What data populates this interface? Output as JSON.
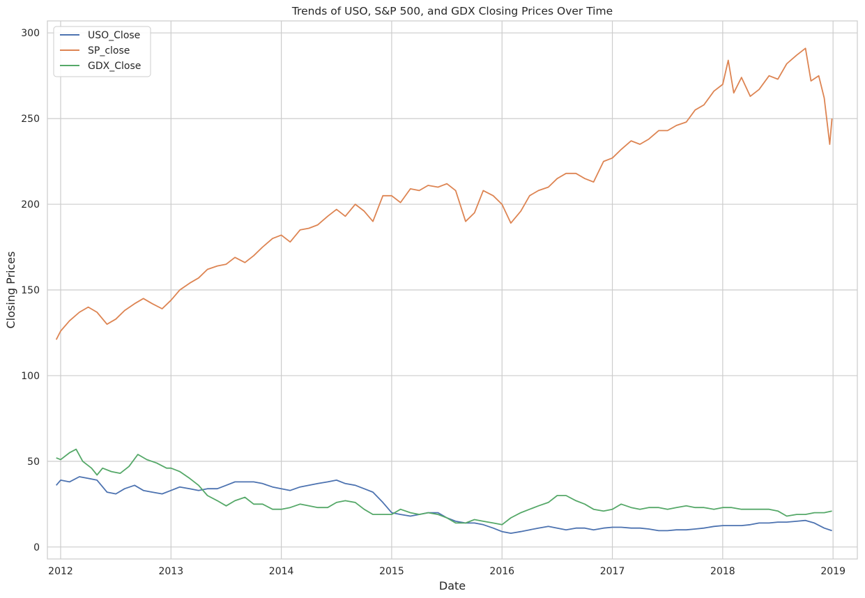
{
  "chart_data": {
    "type": "line",
    "title": "Trends of USO, S&P 500, and GDX Closing Prices Over Time",
    "xlabel": "Date",
    "ylabel": "Closing Prices",
    "xlim": [
      2011.88,
      2019.22
    ],
    "ylim": [
      -7,
      307
    ],
    "x_ticks": [
      2012,
      2013,
      2014,
      2015,
      2016,
      2017,
      2018,
      2019
    ],
    "x_tick_labels": [
      "2012",
      "2013",
      "2014",
      "2015",
      "2016",
      "2017",
      "2018",
      "2019"
    ],
    "y_ticks": [
      0,
      50,
      100,
      150,
      200,
      250,
      300
    ],
    "y_tick_labels": [
      "0",
      "50",
      "100",
      "150",
      "200",
      "250",
      "300"
    ],
    "grid": true,
    "legend_position": "top-left",
    "series": [
      {
        "name": "USO_Close",
        "color": "#4c72b0",
        "points": [
          [
            2011.96,
            36
          ],
          [
            2012.0,
            39
          ],
          [
            2012.08,
            38
          ],
          [
            2012.17,
            41
          ],
          [
            2012.25,
            40
          ],
          [
            2012.33,
            39
          ],
          [
            2012.42,
            32
          ],
          [
            2012.5,
            31
          ],
          [
            2012.58,
            34
          ],
          [
            2012.67,
            36
          ],
          [
            2012.75,
            33
          ],
          [
            2012.83,
            32
          ],
          [
            2012.92,
            31
          ],
          [
            2013.0,
            33
          ],
          [
            2013.08,
            35
          ],
          [
            2013.17,
            34
          ],
          [
            2013.25,
            33
          ],
          [
            2013.33,
            34
          ],
          [
            2013.42,
            34
          ],
          [
            2013.5,
            36
          ],
          [
            2013.58,
            38
          ],
          [
            2013.67,
            38
          ],
          [
            2013.75,
            38
          ],
          [
            2013.83,
            37
          ],
          [
            2013.92,
            35
          ],
          [
            2014.0,
            34
          ],
          [
            2014.08,
            33
          ],
          [
            2014.17,
            35
          ],
          [
            2014.25,
            36
          ],
          [
            2014.33,
            37
          ],
          [
            2014.42,
            38
          ],
          [
            2014.5,
            39
          ],
          [
            2014.58,
            37
          ],
          [
            2014.67,
            36
          ],
          [
            2014.75,
            34
          ],
          [
            2014.83,
            32
          ],
          [
            2014.92,
            26
          ],
          [
            2015.0,
            20
          ],
          [
            2015.08,
            19
          ],
          [
            2015.17,
            18
          ],
          [
            2015.25,
            19
          ],
          [
            2015.33,
            20
          ],
          [
            2015.42,
            20
          ],
          [
            2015.5,
            17
          ],
          [
            2015.58,
            15
          ],
          [
            2015.67,
            14
          ],
          [
            2015.75,
            14
          ],
          [
            2015.83,
            13
          ],
          [
            2015.92,
            11
          ],
          [
            2016.0,
            9
          ],
          [
            2016.08,
            8
          ],
          [
            2016.17,
            9
          ],
          [
            2016.25,
            10
          ],
          [
            2016.33,
            11
          ],
          [
            2016.42,
            12
          ],
          [
            2016.5,
            11
          ],
          [
            2016.58,
            10
          ],
          [
            2016.67,
            11
          ],
          [
            2016.75,
            11
          ],
          [
            2016.83,
            10
          ],
          [
            2016.92,
            11
          ],
          [
            2017.0,
            11.5
          ],
          [
            2017.08,
            11.5
          ],
          [
            2017.17,
            11
          ],
          [
            2017.25,
            11
          ],
          [
            2017.33,
            10.5
          ],
          [
            2017.42,
            9.5
          ],
          [
            2017.5,
            9.5
          ],
          [
            2017.58,
            10
          ],
          [
            2017.67,
            10
          ],
          [
            2017.75,
            10.5
          ],
          [
            2017.83,
            11
          ],
          [
            2017.92,
            12
          ],
          [
            2018.0,
            12.5
          ],
          [
            2018.08,
            12.5
          ],
          [
            2018.17,
            12.5
          ],
          [
            2018.25,
            13
          ],
          [
            2018.33,
            14
          ],
          [
            2018.42,
            14
          ],
          [
            2018.5,
            14.5
          ],
          [
            2018.58,
            14.5
          ],
          [
            2018.67,
            15
          ],
          [
            2018.75,
            15.5
          ],
          [
            2018.83,
            14
          ],
          [
            2018.92,
            11
          ],
          [
            2018.99,
            9.5
          ]
        ]
      },
      {
        "name": "SP_close",
        "color": "#dd8452",
        "points": [
          [
            2011.96,
            121
          ],
          [
            2012.0,
            126
          ],
          [
            2012.08,
            132
          ],
          [
            2012.17,
            137
          ],
          [
            2012.25,
            140
          ],
          [
            2012.33,
            137
          ],
          [
            2012.42,
            130
          ],
          [
            2012.5,
            133
          ],
          [
            2012.58,
            138
          ],
          [
            2012.67,
            142
          ],
          [
            2012.75,
            145
          ],
          [
            2012.83,
            142
          ],
          [
            2012.92,
            139
          ],
          [
            2013.0,
            144
          ],
          [
            2013.08,
            150
          ],
          [
            2013.17,
            154
          ],
          [
            2013.25,
            157
          ],
          [
            2013.33,
            162
          ],
          [
            2013.42,
            164
          ],
          [
            2013.5,
            165
          ],
          [
            2013.58,
            169
          ],
          [
            2013.67,
            166
          ],
          [
            2013.75,
            170
          ],
          [
            2013.83,
            175
          ],
          [
            2013.92,
            180
          ],
          [
            2014.0,
            182
          ],
          [
            2014.08,
            178
          ],
          [
            2014.17,
            185
          ],
          [
            2014.25,
            186
          ],
          [
            2014.33,
            188
          ],
          [
            2014.42,
            193
          ],
          [
            2014.5,
            197
          ],
          [
            2014.58,
            193
          ],
          [
            2014.67,
            200
          ],
          [
            2014.75,
            196
          ],
          [
            2014.83,
            190
          ],
          [
            2014.92,
            205
          ],
          [
            2015.0,
            205
          ],
          [
            2015.08,
            201
          ],
          [
            2015.17,
            209
          ],
          [
            2015.25,
            208
          ],
          [
            2015.33,
            211
          ],
          [
            2015.42,
            210
          ],
          [
            2015.5,
            212
          ],
          [
            2015.58,
            208
          ],
          [
            2015.67,
            190
          ],
          [
            2015.75,
            195
          ],
          [
            2015.83,
            208
          ],
          [
            2015.92,
            205
          ],
          [
            2016.0,
            200
          ],
          [
            2016.08,
            189
          ],
          [
            2016.17,
            196
          ],
          [
            2016.25,
            205
          ],
          [
            2016.33,
            208
          ],
          [
            2016.42,
            210
          ],
          [
            2016.5,
            215
          ],
          [
            2016.58,
            218
          ],
          [
            2016.67,
            218
          ],
          [
            2016.75,
            215
          ],
          [
            2016.83,
            213
          ],
          [
            2016.92,
            225
          ],
          [
            2017.0,
            227
          ],
          [
            2017.08,
            232
          ],
          [
            2017.17,
            237
          ],
          [
            2017.25,
            235
          ],
          [
            2017.33,
            238
          ],
          [
            2017.42,
            243
          ],
          [
            2017.5,
            243
          ],
          [
            2017.58,
            246
          ],
          [
            2017.67,
            248
          ],
          [
            2017.75,
            255
          ],
          [
            2017.83,
            258
          ],
          [
            2017.92,
            266
          ],
          [
            2018.0,
            270
          ],
          [
            2018.05,
            284
          ],
          [
            2018.1,
            265
          ],
          [
            2018.17,
            274
          ],
          [
            2018.25,
            263
          ],
          [
            2018.33,
            267
          ],
          [
            2018.42,
            275
          ],
          [
            2018.5,
            273
          ],
          [
            2018.58,
            282
          ],
          [
            2018.67,
            287
          ],
          [
            2018.75,
            291
          ],
          [
            2018.8,
            272
          ],
          [
            2018.87,
            275
          ],
          [
            2018.92,
            262
          ],
          [
            2018.97,
            235
          ],
          [
            2018.99,
            250
          ]
        ]
      },
      {
        "name": "GDX_Close",
        "color": "#55a868",
        "points": [
          [
            2011.96,
            52
          ],
          [
            2012.0,
            51
          ],
          [
            2012.08,
            55
          ],
          [
            2012.14,
            57
          ],
          [
            2012.2,
            50
          ],
          [
            2012.28,
            46
          ],
          [
            2012.33,
            42
          ],
          [
            2012.38,
            46
          ],
          [
            2012.46,
            44
          ],
          [
            2012.54,
            43
          ],
          [
            2012.62,
            47
          ],
          [
            2012.7,
            54
          ],
          [
            2012.78,
            51
          ],
          [
            2012.87,
            49
          ],
          [
            2012.96,
            46
          ],
          [
            2013.0,
            46
          ],
          [
            2013.08,
            44
          ],
          [
            2013.17,
            40
          ],
          [
            2013.25,
            36
          ],
          [
            2013.33,
            30
          ],
          [
            2013.42,
            27
          ],
          [
            2013.5,
            24
          ],
          [
            2013.58,
            27
          ],
          [
            2013.67,
            29
          ],
          [
            2013.75,
            25
          ],
          [
            2013.83,
            25
          ],
          [
            2013.92,
            22
          ],
          [
            2014.0,
            22
          ],
          [
            2014.08,
            23
          ],
          [
            2014.17,
            25
          ],
          [
            2014.25,
            24
          ],
          [
            2014.33,
            23
          ],
          [
            2014.42,
            23
          ],
          [
            2014.5,
            26
          ],
          [
            2014.58,
            27
          ],
          [
            2014.67,
            26
          ],
          [
            2014.75,
            22
          ],
          [
            2014.83,
            19
          ],
          [
            2014.92,
            19
          ],
          [
            2015.0,
            19
          ],
          [
            2015.08,
            22
          ],
          [
            2015.17,
            20
          ],
          [
            2015.25,
            19
          ],
          [
            2015.33,
            20
          ],
          [
            2015.42,
            19
          ],
          [
            2015.5,
            17
          ],
          [
            2015.58,
            14
          ],
          [
            2015.67,
            14
          ],
          [
            2015.75,
            16
          ],
          [
            2015.83,
            15
          ],
          [
            2015.92,
            14
          ],
          [
            2016.0,
            13
          ],
          [
            2016.08,
            17
          ],
          [
            2016.17,
            20
          ],
          [
            2016.25,
            22
          ],
          [
            2016.33,
            24
          ],
          [
            2016.42,
            26
          ],
          [
            2016.5,
            30
          ],
          [
            2016.58,
            30
          ],
          [
            2016.67,
            27
          ],
          [
            2016.75,
            25
          ],
          [
            2016.83,
            22
          ],
          [
            2016.92,
            21
          ],
          [
            2017.0,
            22
          ],
          [
            2017.08,
            25
          ],
          [
            2017.17,
            23
          ],
          [
            2017.25,
            22
          ],
          [
            2017.33,
            23
          ],
          [
            2017.42,
            23
          ],
          [
            2017.5,
            22
          ],
          [
            2017.58,
            23
          ],
          [
            2017.67,
            24
          ],
          [
            2017.75,
            23
          ],
          [
            2017.83,
            23
          ],
          [
            2017.92,
            22
          ],
          [
            2018.0,
            23
          ],
          [
            2018.08,
            23
          ],
          [
            2018.17,
            22
          ],
          [
            2018.25,
            22
          ],
          [
            2018.33,
            22
          ],
          [
            2018.42,
            22
          ],
          [
            2018.5,
            21
          ],
          [
            2018.58,
            18
          ],
          [
            2018.67,
            19
          ],
          [
            2018.75,
            19
          ],
          [
            2018.83,
            20
          ],
          [
            2018.92,
            20
          ],
          [
            2018.99,
            21
          ]
        ]
      }
    ]
  }
}
